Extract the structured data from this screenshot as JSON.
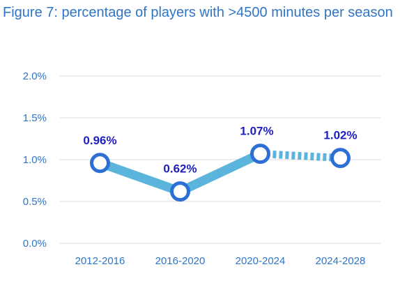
{
  "chart_data": {
    "type": "line",
    "title": "Figure 7: percentage of players with >4500 minutes per season",
    "categories": [
      "2012-2016",
      "2016-2020",
      "2020-2024",
      "2024-2028"
    ],
    "values": [
      0.96,
      0.62,
      1.07,
      1.02
    ],
    "data_labels": [
      "0.96%",
      "0.62%",
      "1.07%",
      "1.02%"
    ],
    "ylim": [
      0,
      2
    ],
    "yticks": [
      0,
      0.5,
      1.0,
      1.5,
      2.0
    ],
    "ytick_labels": [
      "0.0%",
      "0.5%",
      "1.0%",
      "1.5%",
      "2.0%"
    ],
    "projected_from_index": 2,
    "grid": true,
    "colors": {
      "line": "#5BB4DC",
      "marker": "#2E6FD6",
      "label": "#1F1FBF",
      "text": "#2E75C8",
      "grid": "#D9D9D9"
    }
  }
}
